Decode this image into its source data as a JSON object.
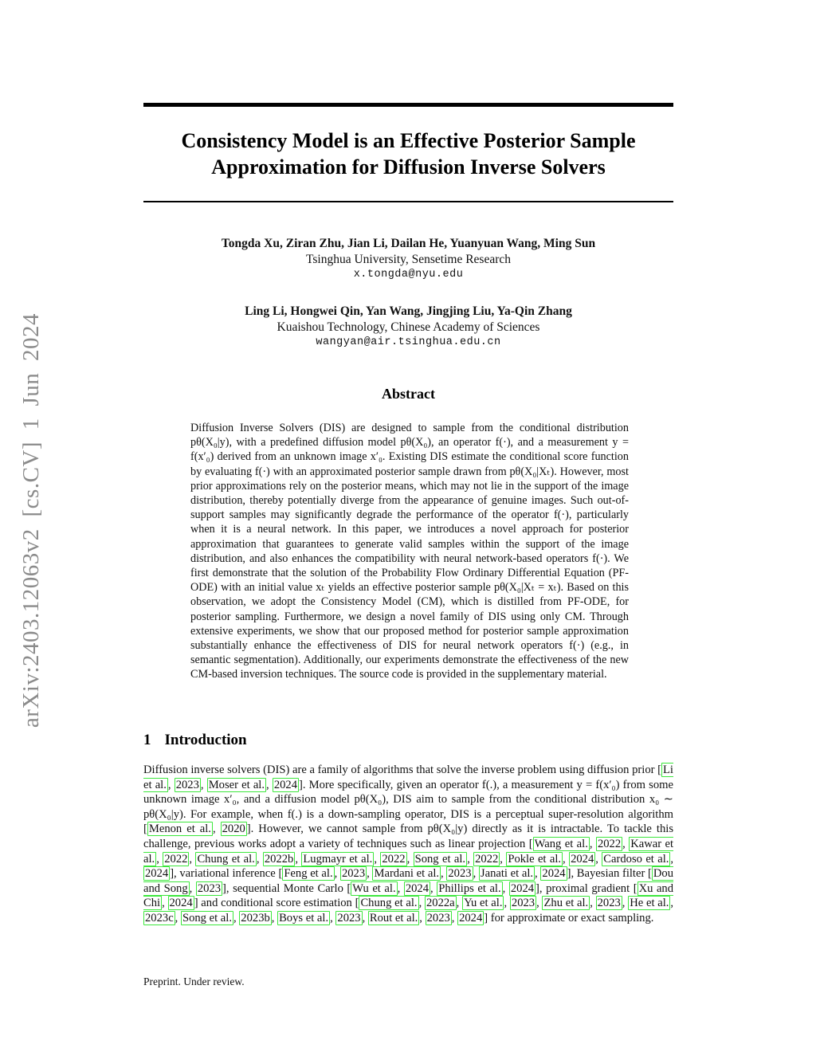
{
  "page": {
    "arxiv_watermark": "arXiv:2403.12063v2  [cs.CV]  1 Jun 2024",
    "footer": "Preprint. Under review."
  },
  "title": {
    "line1": "Consistency Model is an Effective Posterior Sample",
    "line2": "Approximation for Diffusion Inverse Solvers"
  },
  "authors": [
    {
      "names": "Tongda Xu, Ziran Zhu, Jian Li, Dailan He, Yuanyuan Wang, Ming Sun",
      "affiliation": "Tsinghua University, Sensetime Research",
      "email": "x.tongda@nyu.edu"
    },
    {
      "names": "Ling Li, Hongwei Qin, Yan Wang, Jingjing Liu, Ya-Qin Zhang",
      "affiliation": "Kuaishou Technology, Chinese Academy of Sciences",
      "email": "wangyan@air.tsinghua.edu.cn"
    }
  ],
  "abstract": {
    "heading": "Abstract",
    "body": "Diffusion Inverse Solvers (DIS) are designed to sample from the conditional distribution pθ(X₀|y), with a predefined diffusion model pθ(X₀), an operator f(·), and a measurement y = f(x′₀) derived from an unknown image x′₀. Existing DIS estimate the conditional score function by evaluating f(·) with an approximated posterior sample drawn from pθ(X₀|Xₜ). However, most prior approximations rely on the posterior means, which may not lie in the support of the image distribution, thereby potentially diverge from the appearance of genuine images. Such out-of-support samples may significantly degrade the performance of the operator f(·), particularly when it is a neural network. In this paper, we introduces a novel approach for posterior approximation that guarantees to generate valid samples within the support of the image distribution, and also enhances the compatibility with neural network-based operators f(·). We first demonstrate that the solution of the Probability Flow Ordinary Differential Equation (PF-ODE) with an initial value xₜ yields an effective posterior sample pθ(X₀|Xₜ = xₜ). Based on this observation, we adopt the Consistency Model (CM), which is distilled from PF-ODE, for posterior sampling. Furthermore, we design a novel family of DIS using only CM. Through extensive experiments, we show that our proposed method for posterior sample approximation substantially enhance the effectiveness of DIS for neural network operators f(·) (e.g., in semantic segmentation). Additionally, our experiments demonstrate the effectiveness of the new CM-based inversion techniques. The source code is provided in the supplementary material."
  },
  "introduction": {
    "number": "1",
    "heading": "Introduction",
    "segments": [
      {
        "t": "Diffusion inverse solvers (DIS) are a family of algorithms that solve the inverse problem using diffusion prior ["
      },
      {
        "c": "Li et al."
      },
      {
        "t": ", "
      },
      {
        "c": "2023"
      },
      {
        "t": ", "
      },
      {
        "c": "Moser et al."
      },
      {
        "t": ", "
      },
      {
        "c": "2024"
      },
      {
        "t": "]. More specifically, given an operator f(.), a measurement y = f(x′₀) from some unknown image x′₀, and a diffusion model pθ(X₀), DIS aim to sample from the conditional distribution x₀ ∼ pθ(X₀|y). For example, when f(.) is a down-sampling operator, DIS is a perceptual super-resolution algorithm ["
      },
      {
        "c": "Menon et al."
      },
      {
        "t": ", "
      },
      {
        "c": "2020"
      },
      {
        "t": "]. However, we cannot sample from pθ(X₀|y) directly as it is intractable. To tackle this challenge, previous works adopt a variety of techniques such as linear projection ["
      },
      {
        "c": "Wang et al."
      },
      {
        "t": ", "
      },
      {
        "c": "2022"
      },
      {
        "t": ", "
      },
      {
        "c": "Kawar et al."
      },
      {
        "t": ", "
      },
      {
        "c": "2022"
      },
      {
        "t": ", "
      },
      {
        "c": "Chung et al."
      },
      {
        "t": ", "
      },
      {
        "c": "2022b"
      },
      {
        "t": ", "
      },
      {
        "c": "Lugmayr et al."
      },
      {
        "t": ", "
      },
      {
        "c": "2022"
      },
      {
        "t": ", "
      },
      {
        "c": "Song et al."
      },
      {
        "t": ", "
      },
      {
        "c": "2022"
      },
      {
        "t": ", "
      },
      {
        "c": "Pokle et al."
      },
      {
        "t": ", "
      },
      {
        "c": "2024"
      },
      {
        "t": ", "
      },
      {
        "c": "Cardoso et al."
      },
      {
        "t": ", "
      },
      {
        "c": "2024"
      },
      {
        "t": "], variational inference ["
      },
      {
        "c": "Feng et al."
      },
      {
        "t": ", "
      },
      {
        "c": "2023"
      },
      {
        "t": ", "
      },
      {
        "c": "Mardani et al."
      },
      {
        "t": ", "
      },
      {
        "c": "2023"
      },
      {
        "t": ", "
      },
      {
        "c": "Janati et al."
      },
      {
        "t": ", "
      },
      {
        "c": "2024"
      },
      {
        "t": "], Bayesian filter ["
      },
      {
        "c": "Dou and Song"
      },
      {
        "t": ", "
      },
      {
        "c": "2023"
      },
      {
        "t": "], sequential Monte Carlo ["
      },
      {
        "c": "Wu et al."
      },
      {
        "t": ", "
      },
      {
        "c": "2024"
      },
      {
        "t": ", "
      },
      {
        "c": "Phillips et al."
      },
      {
        "t": ", "
      },
      {
        "c": "2024"
      },
      {
        "t": "], proximal gradient ["
      },
      {
        "c": "Xu and Chi"
      },
      {
        "t": ", "
      },
      {
        "c": "2024"
      },
      {
        "t": "] and conditional score estimation ["
      },
      {
        "c": "Chung et al."
      },
      {
        "t": ", "
      },
      {
        "c": "2022a"
      },
      {
        "t": ", "
      },
      {
        "c": "Yu et al."
      },
      {
        "t": ", "
      },
      {
        "c": "2023"
      },
      {
        "t": ", "
      },
      {
        "c": "Zhu et al."
      },
      {
        "t": ", "
      },
      {
        "c": "2023"
      },
      {
        "t": ", "
      },
      {
        "c": "He et al."
      },
      {
        "t": ", "
      },
      {
        "c": "2023c"
      },
      {
        "t": ", "
      },
      {
        "c": "Song et al."
      },
      {
        "t": ", "
      },
      {
        "c": "2023b"
      },
      {
        "t": ", "
      },
      {
        "c": "Boys et al."
      },
      {
        "t": ", "
      },
      {
        "c": "2023"
      },
      {
        "t": ", "
      },
      {
        "c": "Rout et al."
      },
      {
        "t": ", "
      },
      {
        "c": "2023"
      },
      {
        "t": ", "
      },
      {
        "c": "2024"
      },
      {
        "t": "] for approximate or exact sampling."
      }
    ]
  },
  "colors": {
    "citation_green": "#3ce73c",
    "watermark_gray": "#8b8b8b"
  }
}
